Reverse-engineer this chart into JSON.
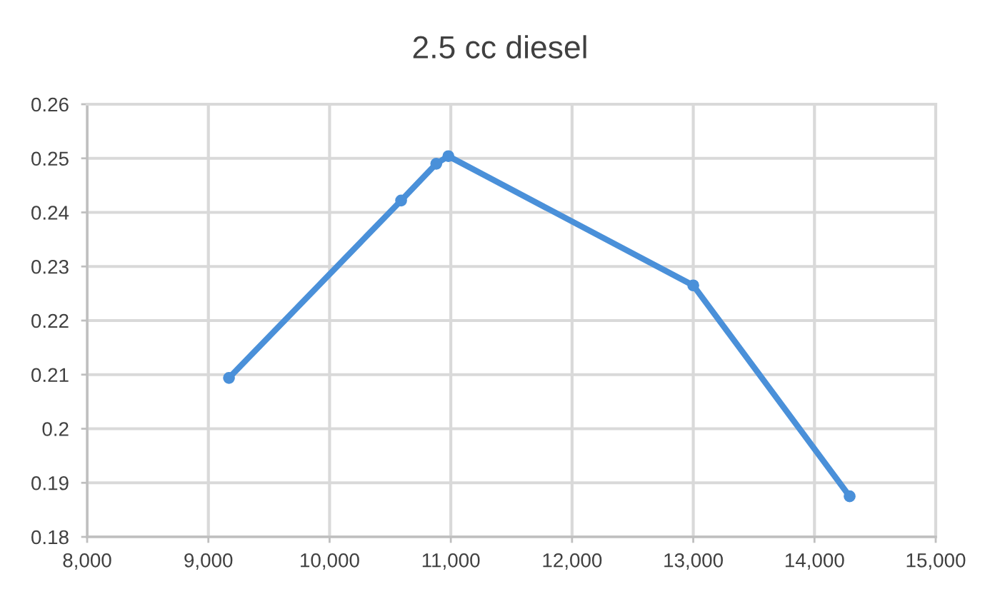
{
  "chart_data": {
    "type": "line",
    "title": "2.5 cc diesel",
    "x": [
      9170,
      10590,
      10880,
      10980,
      13000,
      14290
    ],
    "series": [
      {
        "color": "#4a90d9",
        "values": [
          0.2094,
          0.2422,
          0.249,
          0.2504,
          0.2265,
          0.1875
        ]
      }
    ],
    "xlim": [
      8000,
      15000
    ],
    "xticks": [
      {
        "value": 8000,
        "label": "8,000"
      },
      {
        "value": 9000,
        "label": "9,000"
      },
      {
        "value": 10000,
        "label": "10,000"
      },
      {
        "value": 11000,
        "label": "11,000"
      },
      {
        "value": 12000,
        "label": "12,000"
      },
      {
        "value": 13000,
        "label": "13,000"
      },
      {
        "value": 14000,
        "label": "14,000"
      },
      {
        "value": 15000,
        "label": "15,000"
      }
    ],
    "ylim": [
      0.18,
      0.26
    ],
    "yticks": [
      {
        "value": 0.18,
        "label": "0.18"
      },
      {
        "value": 0.19,
        "label": "0.19"
      },
      {
        "value": 0.2,
        "label": "0.2"
      },
      {
        "value": 0.21,
        "label": "0.21"
      },
      {
        "value": 0.22,
        "label": "0.22"
      },
      {
        "value": 0.23,
        "label": "0.23"
      },
      {
        "value": 0.24,
        "label": "0.24"
      },
      {
        "value": 0.25,
        "label": "0.25"
      },
      {
        "value": 0.26,
        "label": "0.26"
      }
    ],
    "grid": true,
    "marker": "circle",
    "line_style": "solid"
  }
}
